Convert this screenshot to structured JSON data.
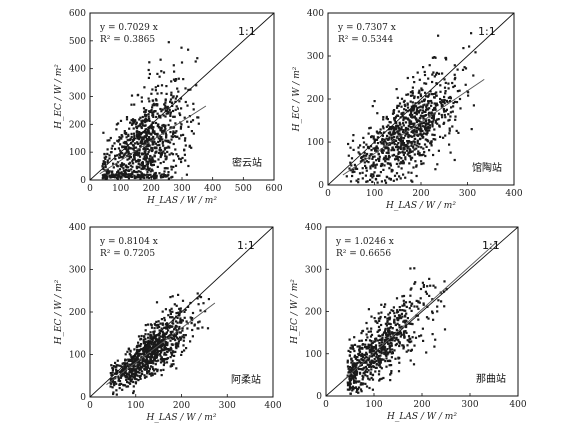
{
  "chart_data": [
    {
      "type": "scatter",
      "site": "密云站",
      "equation": "y = 0.7029 x",
      "r2": "R² = 0.3865",
      "slope": 0.7029,
      "one_to_one": "1:1",
      "xlabel": "H_LAS / W / m²",
      "ylabel": "H_EC / W / m²",
      "xlim": [
        0,
        600
      ],
      "ylim": [
        0,
        600
      ],
      "xticks": [
        "0",
        "100",
        "200",
        "300",
        "400",
        "500",
        "600"
      ],
      "yticks": [
        "0",
        "100",
        "200",
        "300",
        "400",
        "500",
        "600"
      ],
      "cloud": {
        "x_center": 175,
        "x_spread": 70,
        "x_min": 40,
        "x_max": 360,
        "noise": 80,
        "n": 900
      }
    },
    {
      "type": "scatter",
      "site": "馆陶站",
      "equation": "y = 0.7307 x",
      "r2": "R² = 0.5344",
      "slope": 0.7307,
      "one_to_one": "1:1",
      "xlabel": "H_LAS / W / m²",
      "ylabel": "H_EC / W / m²",
      "xlim": [
        0,
        400
      ],
      "ylim": [
        0,
        400
      ],
      "xticks": [
        "0",
        "100",
        "200",
        "300",
        "400"
      ],
      "yticks": [
        "0",
        "100",
        "200",
        "300",
        "400"
      ],
      "cloud": {
        "x_center": 170,
        "x_spread": 55,
        "x_min": 40,
        "x_max": 320,
        "noise": 40,
        "n": 900
      }
    },
    {
      "type": "scatter",
      "site": "阿柔站",
      "equation": "y = 0.8104 x",
      "r2": "R² = 0.7205",
      "slope": 0.8104,
      "one_to_one": "1:1",
      "xlabel": "H_LAS / W / m²",
      "ylabel": "H_EC / W / m²",
      "xlim": [
        0,
        400
      ],
      "ylim": [
        0,
        400
      ],
      "xticks": [
        "0",
        "100",
        "200",
        "300",
        "400"
      ],
      "yticks": [
        "0",
        "100",
        "200",
        "300",
        "400"
      ],
      "cloud": {
        "x_center": 130,
        "x_spread": 45,
        "x_min": 45,
        "x_max": 260,
        "noise": 25,
        "n": 900
      }
    },
    {
      "type": "scatter",
      "site": "那曲站",
      "equation": "y = 1.0246 x",
      "r2": "R² = 0.6656",
      "slope": 1.0246,
      "one_to_one": "1:1",
      "xlabel": "H_LAS / W / m²",
      "ylabel": "H_EC / W / m²",
      "xlim": [
        0,
        400
      ],
      "ylim": [
        0,
        400
      ],
      "xticks": [
        "0",
        "100",
        "200",
        "300",
        "400"
      ],
      "yticks": [
        "0",
        "100",
        "200",
        "300",
        "400"
      ],
      "cloud": {
        "x_center": 110,
        "x_spread": 50,
        "x_min": 45,
        "x_max": 340,
        "noise": 40,
        "n": 700
      }
    }
  ]
}
